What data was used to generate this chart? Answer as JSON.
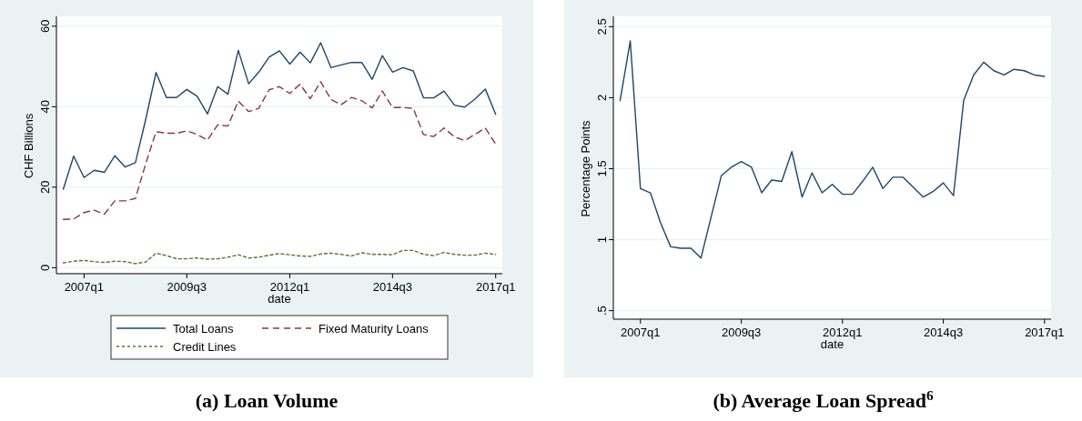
{
  "chart_data": [
    {
      "type": "line",
      "title": "(a) Loan Volume",
      "xlabel": "date",
      "ylabel": "CHF Billions",
      "x": [
        "2006-07",
        "2006-10",
        "2007-01",
        "2007-04",
        "2007-07",
        "2007-10",
        "2008-01",
        "2008-04",
        "2008-07",
        "2008-10",
        "2009-01",
        "2009-04",
        "2009-07",
        "2009-10",
        "2010-01",
        "2010-04",
        "2010-07",
        "2010-10",
        "2011-01",
        "2011-04",
        "2011-07",
        "2011-10",
        "2012-01",
        "2012-04",
        "2012-07",
        "2012-10",
        "2013-01",
        "2013-04",
        "2013-07",
        "2013-10",
        "2014-01",
        "2014-04",
        "2014-07",
        "2014-10",
        "2015-01",
        "2015-04",
        "2015-07",
        "2015-10",
        "2016-01",
        "2016-04",
        "2016-07",
        "2016-10",
        "2017-01"
      ],
      "series": [
        {
          "name": "Total Loans",
          "color": "#1a476f",
          "line_style": "solid",
          "values": [
            19.5,
            27.7,
            22.4,
            24.2,
            23.7,
            27.8,
            25.0,
            26.1,
            36.8,
            48.5,
            42.3,
            42.3,
            44.3,
            42.6,
            38.2,
            45.0,
            43.1,
            54.0,
            45.7,
            48.6,
            52.3,
            53.9,
            50.6,
            53.6,
            50.9,
            55.9,
            49.7,
            50.4,
            51.0,
            51.0,
            46.8,
            52.7,
            48.6,
            49.7,
            48.9,
            42.2,
            42.2,
            43.9,
            40.4,
            39.9,
            41.9,
            44.4,
            38.1
          ]
        },
        {
          "name": "Fixed Maturity Loans",
          "color": "#90353b",
          "line_style": "dashed",
          "values": [
            12.0,
            12.1,
            13.7,
            14.3,
            13.3,
            16.6,
            16.6,
            17.2,
            25.8,
            33.8,
            33.4,
            33.4,
            34.0,
            33.1,
            31.7,
            35.5,
            35.2,
            41.4,
            38.8,
            39.6,
            44.2,
            45.0,
            43.3,
            45.6,
            42.0,
            46.2,
            41.8,
            40.5,
            42.3,
            41.5,
            39.7,
            43.9,
            39.8,
            39.8,
            39.6,
            33.1,
            32.6,
            34.7,
            32.5,
            31.6,
            33.1,
            34.7,
            30.7
          ]
        },
        {
          "name": "Credit Lines",
          "color": "#55752f",
          "line_style": "dotted",
          "values": [
            1.2,
            1.6,
            1.8,
            1.5,
            1.3,
            1.6,
            1.5,
            1.0,
            1.4,
            3.6,
            3.0,
            2.2,
            2.2,
            2.4,
            2.1,
            2.2,
            2.6,
            3.2,
            2.4,
            2.6,
            3.1,
            3.5,
            3.2,
            2.9,
            2.8,
            3.4,
            3.6,
            3.3,
            2.9,
            3.7,
            3.3,
            3.3,
            3.2,
            4.3,
            4.3,
            3.3,
            3.0,
            3.8,
            3.3,
            3.1,
            3.1,
            3.6,
            3.3
          ]
        }
      ],
      "xlim": [
        "2006-05",
        "2017-03"
      ],
      "xticks": [
        {
          "value": "2007-01",
          "label": "2007q1"
        },
        {
          "value": "2009-07",
          "label": "2009q3"
        },
        {
          "value": "2012-01",
          "label": "2012q1"
        },
        {
          "value": "2014-07",
          "label": "2014q3"
        },
        {
          "value": "2017-01",
          "label": "2017q1"
        }
      ],
      "ylim": [
        -1.5,
        62
      ],
      "yticks": [
        0,
        20,
        40,
        60
      ],
      "grid": "y",
      "legend": "bottom"
    },
    {
      "type": "line",
      "title": "(b) Average Loan Spread$^{6}$",
      "xlabel": "date",
      "ylabel": "Percentage Points",
      "x": [
        "2006-07",
        "2006-10",
        "2007-01",
        "2007-04",
        "2007-07",
        "2007-10",
        "2008-01",
        "2008-04",
        "2008-07",
        "2008-10",
        "2009-01",
        "2009-04",
        "2009-07",
        "2009-10",
        "2010-01",
        "2010-04",
        "2010-07",
        "2010-10",
        "2011-01",
        "2011-04",
        "2011-07",
        "2011-10",
        "2012-01",
        "2012-04",
        "2012-07",
        "2012-10",
        "2013-01",
        "2013-04",
        "2013-07",
        "2013-10",
        "2014-01",
        "2014-04",
        "2014-07",
        "2014-10",
        "2015-01",
        "2015-04",
        "2015-07",
        "2015-10",
        "2016-01",
        "2016-04",
        "2016-07",
        "2016-10",
        "2017-01"
      ],
      "series": [
        {
          "color": "#1a476f",
          "line_style": "solid",
          "values": [
            1.98,
            2.4,
            1.36,
            1.33,
            1.12,
            0.95,
            0.94,
            0.94,
            0.87,
            1.16,
            1.45,
            1.51,
            1.55,
            1.51,
            1.33,
            1.42,
            1.41,
            1.62,
            1.3,
            1.47,
            1.33,
            1.39,
            1.32,
            1.32,
            1.41,
            1.51,
            1.36,
            1.44,
            1.44,
            1.37,
            1.3,
            1.34,
            1.4,
            1.31,
            1.98,
            2.16,
            2.25,
            2.19,
            2.16,
            2.2,
            2.19,
            2.16,
            2.15
          ]
        }
      ],
      "xlim": [
        "2006-05",
        "2017-03"
      ],
      "xticks": [
        {
          "value": "2007-01",
          "label": "2007q1"
        },
        {
          "value": "2009-07",
          "label": "2009q3"
        },
        {
          "value": "2012-01",
          "label": "2012q1"
        },
        {
          "value": "2014-07",
          "label": "2014q3"
        },
        {
          "value": "2017-01",
          "label": "2017q1"
        }
      ],
      "ylim": [
        0.44,
        2.56
      ],
      "yticks": [
        {
          "value": 0.5,
          "label": ".5"
        },
        1,
        1.5,
        2,
        2.5
      ],
      "grid": "y",
      "legend": false
    }
  ]
}
